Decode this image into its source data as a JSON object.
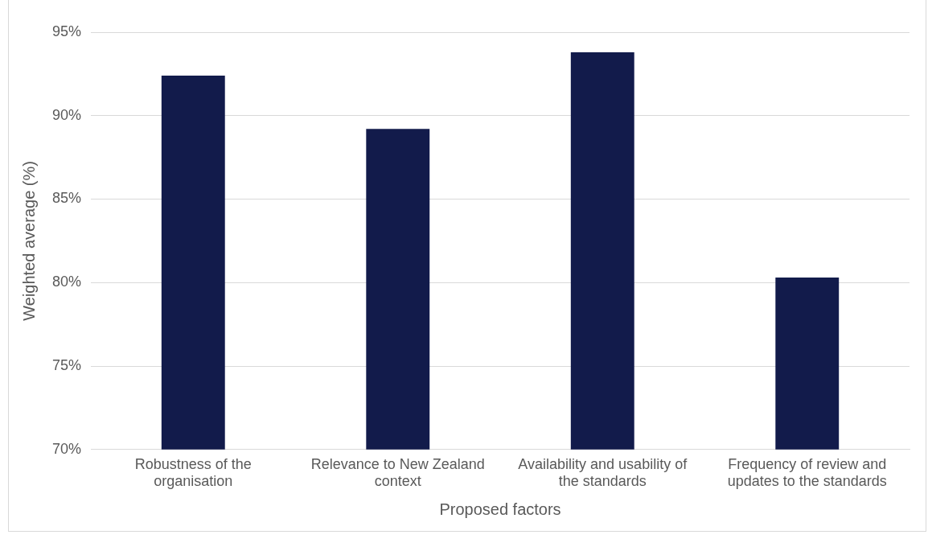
{
  "chart_data": {
    "type": "bar",
    "xlabel": "Proposed factors",
    "ylabel": "Weighted average (%)",
    "categories": [
      "Robustness of the organisation",
      "Relevance to New Zealand context",
      "Availability and usability of the standards",
      "Frequency of review and updates to the standards"
    ],
    "values": [
      92.4,
      89.2,
      93.8,
      80.3
    ],
    "color": "#121b4b",
    "ylim": [
      70,
      95
    ],
    "yticks": [
      {
        "value": 70,
        "label": "70%"
      },
      {
        "value": 75,
        "label": "75%"
      },
      {
        "value": 80,
        "label": "80%"
      },
      {
        "value": 85,
        "label": "85%"
      },
      {
        "value": 90,
        "label": "90%"
      },
      {
        "value": 95,
        "label": "95%"
      }
    ],
    "grid": "y"
  }
}
